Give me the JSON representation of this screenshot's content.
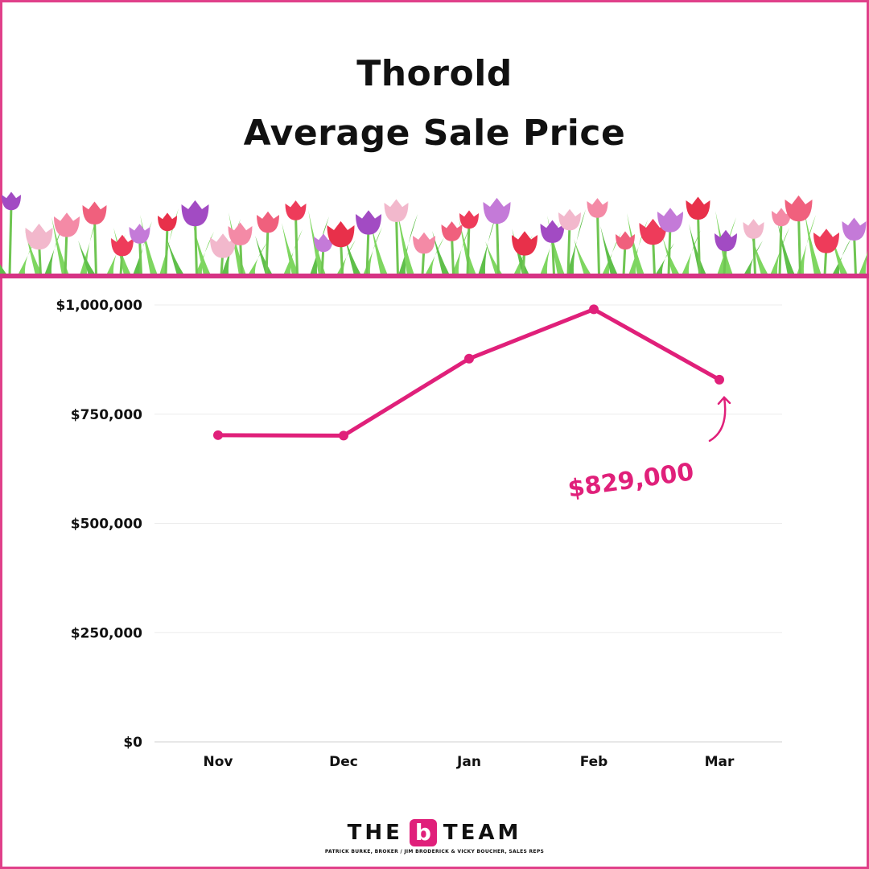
{
  "header": {
    "title_line1": "Thorold",
    "title_line2": "Average Sale Price"
  },
  "chart_data": {
    "type": "line",
    "title": "Thorold Average Sale Price",
    "categories": [
      "Nov",
      "Dec",
      "Jan",
      "Feb",
      "Mar"
    ],
    "series": [
      {
        "values": [
          702000,
          701000,
          877000,
          990000,
          829000
        ],
        "color": "#e0207a"
      }
    ],
    "ylim": [
      0,
      1000000
    ],
    "yticks": [
      0,
      250000,
      500000,
      750000,
      1000000
    ],
    "ytick_labels": [
      "$0",
      "$250,000",
      "$500,000",
      "$750,000",
      "$1,000,000"
    ],
    "grid": true,
    "annotation": {
      "text": "$829,000",
      "category": "Mar",
      "value": 829000
    }
  },
  "logo": {
    "text_left": "THE",
    "letter": "b",
    "text_right": "TEAM",
    "subtitle": "PATRICK BURKE, BROKER / JIM BRODERICK & VICKY BOUCHER, SALES REPS"
  },
  "colors": {
    "accent": "#e0207a",
    "border": "#e0408a"
  }
}
